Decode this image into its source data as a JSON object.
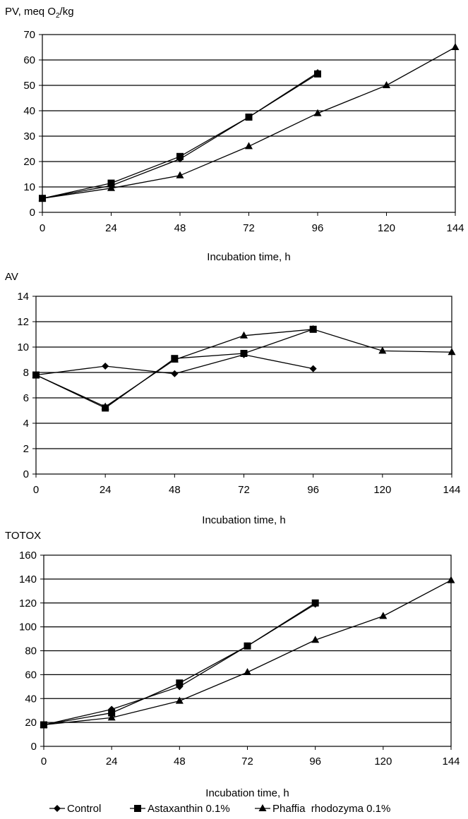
{
  "figure": {
    "legend": {
      "entries": [
        {
          "series": "Control",
          "label": "Control",
          "marker": "diamond"
        },
        {
          "series": "Astaxanthin",
          "label": "Astaxanthin 0.1%",
          "marker": "square"
        },
        {
          "series": "Phaffia",
          "label": "Phaffia  rhodozyma 0.1%",
          "marker": "triangle"
        }
      ]
    }
  },
  "chart_data": [
    {
      "type": "line",
      "ylabel": "PV, meq O",
      "ylabel_sub": "2",
      "ylabel_suffix": "/kg",
      "xlabel": "Incubation time, h",
      "xticks": [
        0,
        24,
        48,
        72,
        96,
        120,
        144
      ],
      "ylim": [
        0,
        70
      ],
      "yticks": [
        0,
        10,
        20,
        30,
        40,
        50,
        60,
        70
      ],
      "grid": "horizontal",
      "series": [
        {
          "name": "Control",
          "marker": "diamond",
          "x": [
            0,
            24,
            48,
            72,
            96
          ],
          "y": [
            5.5,
            10.5,
            21,
            37.5,
            55
          ]
        },
        {
          "name": "Astaxanthin 0.1%",
          "marker": "square",
          "x": [
            0,
            24,
            48,
            72,
            96
          ],
          "y": [
            5.5,
            11.5,
            22,
            37.5,
            54.5
          ]
        },
        {
          "name": "Phaffia  rhodozyma 0.1%",
          "marker": "triangle",
          "x": [
            0,
            24,
            48,
            72,
            96,
            120,
            144
          ],
          "y": [
            5.5,
            9.5,
            14.5,
            26,
            39,
            50,
            65
          ]
        }
      ]
    },
    {
      "type": "line",
      "ylabel": "AV",
      "xlabel": "Incubation time, h",
      "xticks": [
        0,
        24,
        48,
        72,
        96,
        120,
        144
      ],
      "ylim": [
        0,
        14
      ],
      "yticks": [
        0,
        2,
        4,
        6,
        8,
        10,
        12,
        14
      ],
      "grid": "horizontal",
      "series": [
        {
          "name": "Control",
          "marker": "diamond",
          "x": [
            0,
            24,
            48,
            72,
            96
          ],
          "y": [
            7.8,
            8.5,
            7.9,
            9.4,
            8.3
          ]
        },
        {
          "name": "Astaxanthin 0.1%",
          "marker": "square",
          "x": [
            0,
            24,
            48,
            72,
            96
          ],
          "y": [
            7.8,
            5.2,
            9.1,
            9.5,
            11.4
          ]
        },
        {
          "name": "Phaffia  rhodozyma 0.1%",
          "marker": "triangle",
          "x": [
            0,
            24,
            48,
            72,
            96,
            120,
            144
          ],
          "y": [
            7.8,
            5.3,
            9.0,
            10.9,
            11.4,
            9.7,
            9.6
          ]
        }
      ]
    },
    {
      "type": "line",
      "ylabel": "TOTOX",
      "xlabel": "Incubation time, h",
      "xticks": [
        0,
        24,
        48,
        72,
        96,
        120,
        144
      ],
      "ylim": [
        0,
        160
      ],
      "yticks": [
        0,
        20,
        40,
        60,
        80,
        100,
        120,
        140,
        160
      ],
      "grid": "horizontal",
      "series": [
        {
          "name": "Control",
          "marker": "diamond",
          "x": [
            0,
            24,
            48,
            72,
            96
          ],
          "y": [
            18,
            31,
            50,
            84,
            119
          ]
        },
        {
          "name": "Astaxanthin 0.1%",
          "marker": "square",
          "x": [
            0,
            24,
            48,
            72,
            96
          ],
          "y": [
            18,
            28,
            53,
            84,
            120
          ]
        },
        {
          "name": "Phaffia  rhodozyma 0.1%",
          "marker": "triangle",
          "x": [
            0,
            24,
            48,
            72,
            96,
            120,
            144
          ],
          "y": [
            18,
            24,
            38,
            62,
            89,
            109,
            139
          ]
        }
      ]
    }
  ]
}
